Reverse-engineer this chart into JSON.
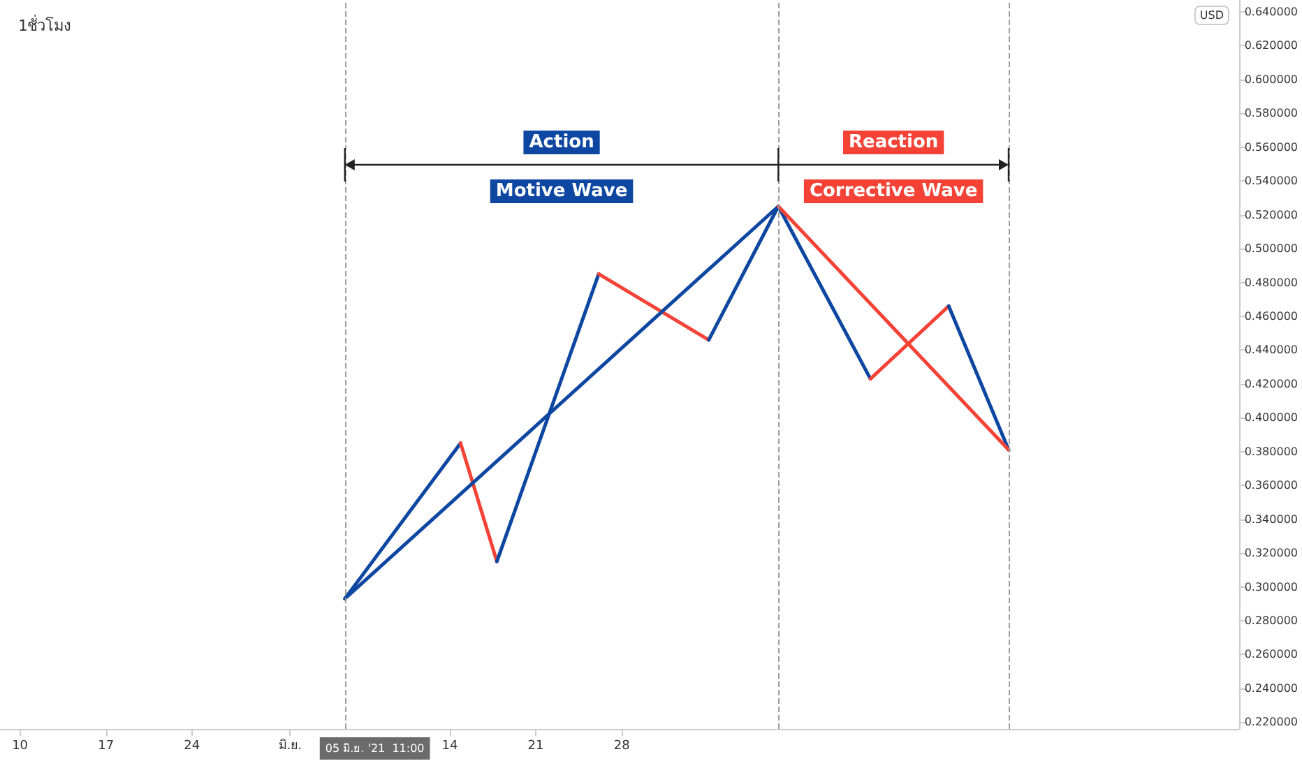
{
  "chart_data": {
    "type": "line",
    "title": "1ชั่วโมง",
    "ylabel": "USD",
    "xlim": [
      "2021-05-08T09:00",
      "2021-08-17T06:00"
    ],
    "xticks": [
      {
        "value": "2021-05-10",
        "label": "10"
      },
      {
        "value": "2021-05-17",
        "label": "17"
      },
      {
        "value": "2021-05-24",
        "label": "24"
      },
      {
        "value": "2021-06-01",
        "label": "มิ.ย."
      },
      {
        "value": "2021-06-14",
        "label": "14"
      },
      {
        "value": "2021-06-21",
        "label": "21"
      },
      {
        "value": "2021-06-28",
        "label": "28"
      }
    ],
    "ylim": [
      0.216,
      0.647
    ],
    "yticks": [
      {
        "value": 0.22,
        "label": "0.220000"
      },
      {
        "value": 0.24,
        "label": "0.240000"
      },
      {
        "value": 0.26,
        "label": "0.260000"
      },
      {
        "value": 0.28,
        "label": "0.280000"
      },
      {
        "value": 0.3,
        "label": "0.300000"
      },
      {
        "value": 0.32,
        "label": "0.320000"
      },
      {
        "value": 0.34,
        "label": "0.340000"
      },
      {
        "value": 0.36,
        "label": "0.360000"
      },
      {
        "value": 0.38,
        "label": "0.380000"
      },
      {
        "value": 0.4,
        "label": "0.400000"
      },
      {
        "value": 0.42,
        "label": "0.420000"
      },
      {
        "value": 0.44,
        "label": "0.440000"
      },
      {
        "value": 0.46,
        "label": "0.460000"
      },
      {
        "value": 0.48,
        "label": "0.480000"
      },
      {
        "value": 0.5,
        "label": "0.500000"
      },
      {
        "value": 0.52,
        "label": "0.520000"
      },
      {
        "value": 0.54,
        "label": "0.540000"
      },
      {
        "value": 0.56,
        "label": "0.560000"
      },
      {
        "value": 0.58,
        "label": "0.580000"
      },
      {
        "value": 0.6,
        "label": "0.600000"
      },
      {
        "value": 0.62,
        "label": "0.620000"
      },
      {
        "value": 0.64,
        "label": "0.640000"
      }
    ],
    "series": [
      {
        "color": "#0d47a1",
        "x": [
          "2021-06-05T11:00",
          "2021-06-14T21:00"
        ],
        "values": [
          0.293,
          0.385
        ]
      },
      {
        "color": "#f44336",
        "x": [
          "2021-06-14T21:00",
          "2021-06-17T20:00"
        ],
        "values": [
          0.385,
          0.315
        ]
      },
      {
        "color": "#0d47a1",
        "x": [
          "2021-06-17T20:00",
          "2021-06-26T03:00"
        ],
        "values": [
          0.315,
          0.485
        ]
      },
      {
        "color": "#f44336",
        "x": [
          "2021-06-26T03:00",
          "2021-07-05T02:00"
        ],
        "values": [
          0.485,
          0.446
        ]
      },
      {
        "color": "#0d47a1",
        "x": [
          "2021-07-05T02:00",
          "2021-07-10T18:00",
          "2021-07-18T06:00"
        ],
        "values": [
          0.446,
          0.525,
          0.423
        ]
      },
      {
        "color": "#f44336",
        "x": [
          "2021-07-18T06:00",
          "2021-07-24T15:00"
        ],
        "values": [
          0.423,
          0.466
        ]
      },
      {
        "color": "#0d47a1",
        "x": [
          "2021-07-24T15:00",
          "2021-07-29T12:00"
        ],
        "values": [
          0.466,
          0.381
        ]
      },
      {
        "color": "#0d47a1",
        "x": [
          "2021-06-05T11:00",
          "2021-07-10T18:00"
        ],
        "values": [
          0.293,
          0.525
        ]
      },
      {
        "color": "#f44336",
        "x": [
          "2021-07-10T18:00",
          "2021-07-29T12:00"
        ],
        "values": [
          0.525,
          0.381
        ]
      }
    ],
    "ref_lines": [
      {
        "axis": "x",
        "value": "2021-06-05T11:00",
        "color": "#9e9e9e",
        "line_style": "dashed"
      },
      {
        "axis": "x",
        "value": "2021-07-10T18:00",
        "color": "#9e9e9e",
        "line_style": "dashed"
      },
      {
        "axis": "x",
        "value": "2021-07-29T12:00",
        "color": "#9e9e9e",
        "line_style": "dashed"
      }
    ],
    "annotations": [
      "Action",
      "Motive Wave",
      "Reaction",
      "Corrective Wave",
      "05 มิ.ย. '21  11:00"
    ],
    "marker": "none",
    "line_style": "solid"
  }
}
